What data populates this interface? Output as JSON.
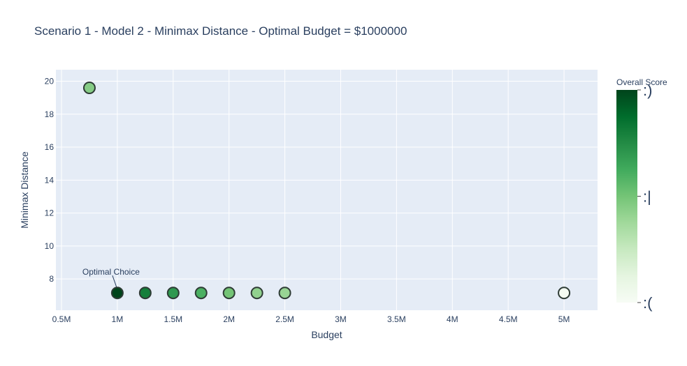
{
  "chart_data": {
    "type": "scatter",
    "title": "Scenario 1 - Model 2 - Minimax Distance - Optimal Budget = $1000000",
    "xlabel": "Budget",
    "ylabel": "Minimax Distance",
    "xlim": [
      450000,
      5300000
    ],
    "ylim": [
      6.1,
      20.7
    ],
    "x_ticks": [
      {
        "value": 500000,
        "label": "0.5M"
      },
      {
        "value": 1000000,
        "label": "1M"
      },
      {
        "value": 1500000,
        "label": "1.5M"
      },
      {
        "value": 2000000,
        "label": "2M"
      },
      {
        "value": 2500000,
        "label": "2.5M"
      },
      {
        "value": 3000000,
        "label": "3M"
      },
      {
        "value": 3500000,
        "label": "3.5M"
      },
      {
        "value": 4000000,
        "label": "4M"
      },
      {
        "value": 4500000,
        "label": "4.5M"
      },
      {
        "value": 5000000,
        "label": "5M"
      }
    ],
    "y_ticks": [
      {
        "value": 8,
        "label": "8"
      },
      {
        "value": 10,
        "label": "10"
      },
      {
        "value": 12,
        "label": "12"
      },
      {
        "value": 14,
        "label": "14"
      },
      {
        "value": 16,
        "label": "16"
      },
      {
        "value": 18,
        "label": "18"
      },
      {
        "value": 20,
        "label": "20"
      }
    ],
    "grid": true,
    "points": [
      {
        "x": 750000,
        "y": 19.6,
        "score": 0.45
      },
      {
        "x": 1000000,
        "y": 7.15,
        "score": 1.0
      },
      {
        "x": 1250000,
        "y": 7.15,
        "score": 0.8
      },
      {
        "x": 1500000,
        "y": 7.15,
        "score": 0.7
      },
      {
        "x": 1750000,
        "y": 7.15,
        "score": 0.6
      },
      {
        "x": 2000000,
        "y": 7.15,
        "score": 0.5
      },
      {
        "x": 2250000,
        "y": 7.15,
        "score": 0.42
      },
      {
        "x": 2500000,
        "y": 7.15,
        "score": 0.4
      },
      {
        "x": 5000000,
        "y": 7.15,
        "score": 0.02
      }
    ],
    "annotation": {
      "text": "Optimal Choice",
      "x": 1000000,
      "y": 7.15
    },
    "colorbar": {
      "title": "Overall Score",
      "colorscale": [
        "#f7fcf5",
        "#e5f5e0",
        "#c7e9c0",
        "#a1d99b",
        "#74c476",
        "#41ab5d",
        "#238b45",
        "#006d2c",
        "#00441b"
      ],
      "tick_labels": [
        {
          "pos": 1.0,
          "label": ":)"
        },
        {
          "pos": 0.5,
          "label": ":|"
        },
        {
          "pos": 0.0,
          "label": ":("
        }
      ]
    },
    "colors": {
      "plot_bg": "#e5ecf6",
      "grid": "#ffffff",
      "marker_outline": "#2e3b35",
      "text": "#2a3f5f"
    }
  }
}
